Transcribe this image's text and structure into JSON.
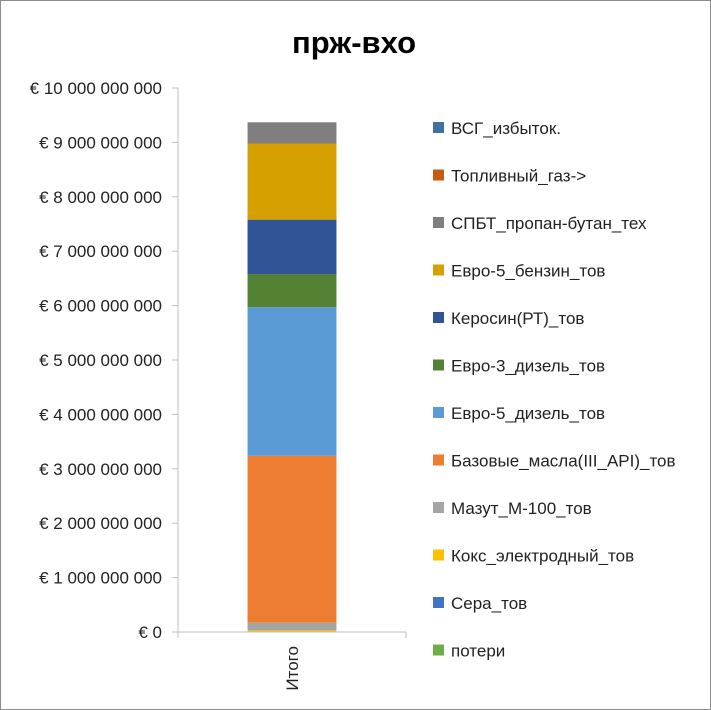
{
  "chart_data": {
    "type": "bar",
    "stacked": true,
    "title": "прж-вхо",
    "categories": [
      "Итого"
    ],
    "ylim": [
      0,
      10000000000
    ],
    "yticks": [
      {
        "value": 0,
        "label": "€ 0"
      },
      {
        "value": 1000000000,
        "label": "€ 1 000 000 000"
      },
      {
        "value": 2000000000,
        "label": "€ 2 000 000 000"
      },
      {
        "value": 3000000000,
        "label": "€ 3 000 000 000"
      },
      {
        "value": 4000000000,
        "label": "€ 4 000 000 000"
      },
      {
        "value": 5000000000,
        "label": "€ 5 000 000 000"
      },
      {
        "value": 6000000000,
        "label": "€ 6 000 000 000"
      },
      {
        "value": 7000000000,
        "label": "€ 7 000 000 000"
      },
      {
        "value": 8000000000,
        "label": "€ 8 000 000 000"
      },
      {
        "value": 9000000000,
        "label": "€ 9 000 000 000"
      },
      {
        "value": 10000000000,
        "label": "€ 10 000 000 000"
      }
    ],
    "grid": false,
    "legend_position": "right",
    "series": [
      {
        "name": "потери",
        "values": [
          0
        ],
        "color": "#70ad47"
      },
      {
        "name": "Сера_тов",
        "values": [
          0
        ],
        "color": "#4472c4"
      },
      {
        "name": "Кокс_электродный_тов",
        "values": [
          30000000
        ],
        "color": "#ffc000"
      },
      {
        "name": "Мазут_М-100_тов",
        "values": [
          140000000
        ],
        "color": "#a5a5a5"
      },
      {
        "name": "Базовые_масла(III_API)_тов",
        "values": [
          3070000000
        ],
        "color": "#ed7d31"
      },
      {
        "name": "Евро-5_дизель_тов",
        "values": [
          2730000000
        ],
        "color": "#5b9bd5"
      },
      {
        "name": "Евро-3_дизель_тов",
        "values": [
          610000000
        ],
        "color": "#548235"
      },
      {
        "name": "Керосин(РТ)_тов",
        "values": [
          1000000000
        ],
        "color": "#2f5597"
      },
      {
        "name": "Евро-5_бензин_тов",
        "values": [
          1400000000
        ],
        "color": "#d6a000"
      },
      {
        "name": "СПБТ_пропан-бутан_тех",
        "values": [
          390000000
        ],
        "color": "#7f7f7f"
      },
      {
        "name": "Топливный_газ->",
        "values": [
          0
        ],
        "color": "#c55a11"
      },
      {
        "name": "ВСГ_избыток.",
        "values": [
          0
        ],
        "color": "#41719c"
      }
    ],
    "legend_order": [
      "ВСГ_избыток.",
      "Топливный_газ->",
      "СПБТ_пропан-бутан_тех",
      "Евро-5_бензин_тов",
      "Керосин(РТ)_тов",
      "Евро-3_дизель_тов",
      "Евро-5_дизель_тов",
      "Базовые_масла(III_API)_тов",
      "Мазут_М-100_тов",
      "Кокс_электродный_тов",
      "Сера_тов",
      "потери"
    ]
  }
}
